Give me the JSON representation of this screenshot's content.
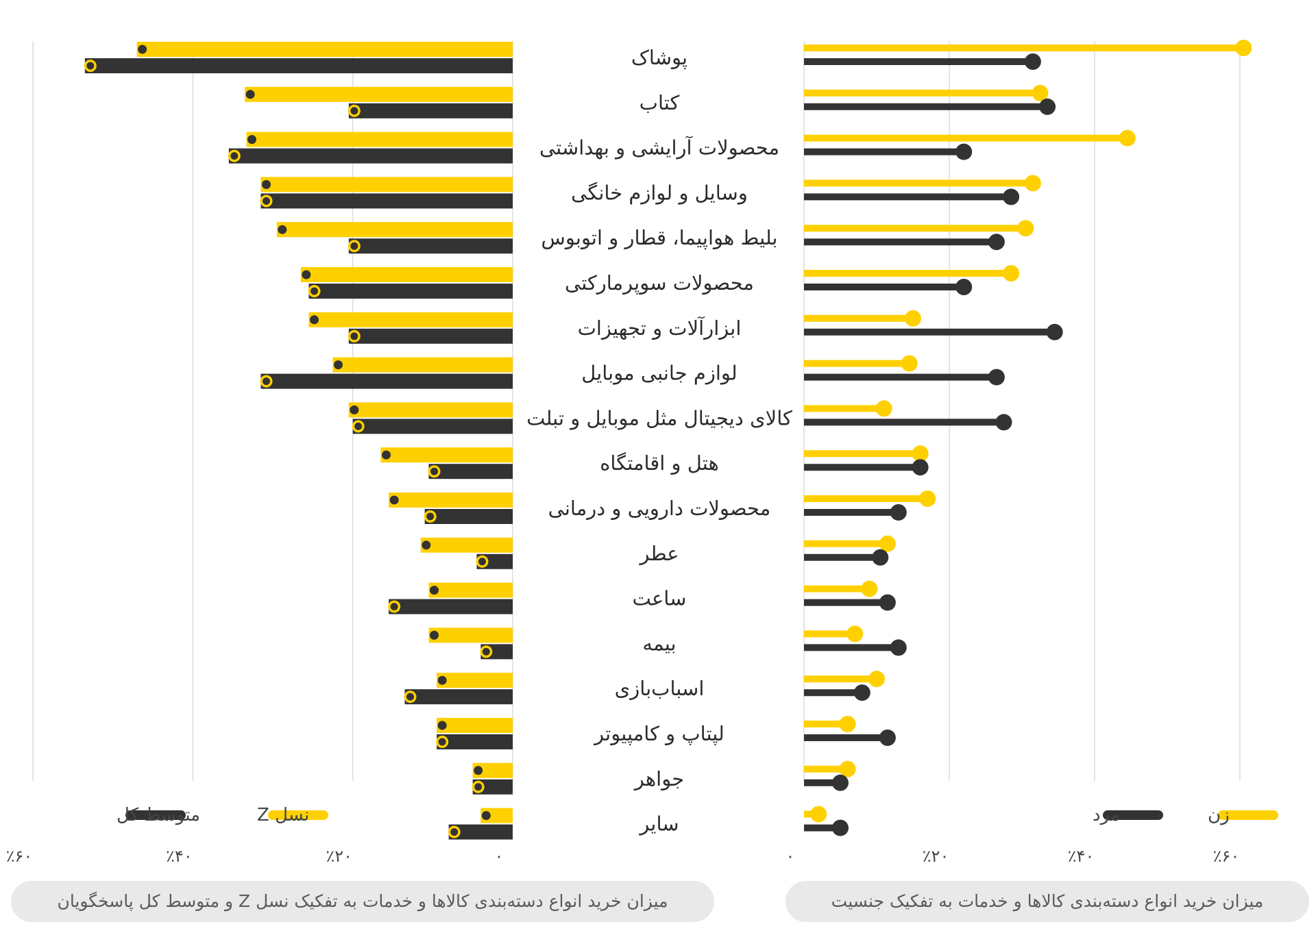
{
  "chart_data": [
    {
      "type": "bar",
      "orientation": "horizontal",
      "direction": "right-to-left",
      "title": "میزان خرید انواع دسته‌بندی کالاها و خدمات به تفکیک نسل Z و متوسط کل پاسخگویان",
      "categories": [
        "پوشاک",
        "کتاب",
        "محصولات آرایشی و بهداشتی",
        "وسایل و لوازم خانگی",
        "بلیط هواپیما، قطار و اتوبوس",
        "محصولات سوپرمارکتی",
        "ابزارآلات و تجهیزات",
        "لوازم جانبی موبایل",
        "کالای دیجیتال مثل موبایل و تبلت",
        "هتل و اقامتگاه",
        "محصولات دارویی و درمانی",
        "عطر",
        "ساعت",
        "بیمه",
        "اسباب‌بازی",
        "لپتاپ و کامپیوتر",
        "جواهر",
        "سایر"
      ],
      "series": [
        {
          "name": "نسل Z",
          "color": "#FFD000",
          "values": [
            47,
            33.5,
            33.3,
            31.5,
            29.5,
            26.5,
            25.5,
            22.5,
            20.5,
            16.5,
            15.5,
            11.5,
            10.5,
            10.5,
            9.5,
            9.5,
            5,
            4
          ]
        },
        {
          "name": "متوسط کل",
          "color": "#333333",
          "values": [
            53.5,
            20.5,
            35.5,
            31.5,
            20.5,
            25.5,
            20.5,
            31.5,
            20,
            10.5,
            11,
            4.5,
            15.5,
            4,
            13.5,
            9.5,
            5,
            8
          ]
        }
      ],
      "xlim": [
        0,
        60
      ],
      "x_ticks": [
        "۰",
        "٪۲۰",
        "٪۴۰",
        "٪۶۰"
      ],
      "grid": true,
      "legend": "bottom-left",
      "legend_entries": [
        "نسل Z",
        "متوسط کل"
      ]
    },
    {
      "type": "lollipop",
      "orientation": "horizontal",
      "title": "میزان خرید انواع دسته‌بندی کالاها و خدمات به تفکیک جنسیت",
      "categories": [
        "پوشاک",
        "کتاب",
        "محصولات آرایشی و بهداشتی",
        "وسایل و لوازم خانگی",
        "بلیط هواپیما، قطار و اتوبوس",
        "محصولات سوپرمارکتی",
        "ابزارآلات و تجهیزات",
        "لوازم جانبی موبایل",
        "کالای دیجیتال مثل موبایل و تبلت",
        "هتل و اقامتگاه",
        "محصولات دارویی و درمانی",
        "عطر",
        "ساعت",
        "بیمه",
        "اسباب‌بازی",
        "لپتاپ و کامپیوتر",
        "جواهر",
        "سایر"
      ],
      "series": [
        {
          "name": "زن",
          "color": "#FFD000",
          "values": [
            60.5,
            32.5,
            44.5,
            31.5,
            30.5,
            28.5,
            15,
            14.5,
            11,
            16,
            17,
            11.5,
            9,
            7,
            10,
            6,
            6,
            2
          ]
        },
        {
          "name": "مرد",
          "color": "#333333",
          "values": [
            31.5,
            33.5,
            22,
            28.5,
            26.5,
            22,
            34.5,
            26.5,
            27.5,
            16,
            13,
            10.5,
            11.5,
            13,
            8,
            11.5,
            5,
            5
          ]
        }
      ],
      "xlim": [
        0,
        60
      ],
      "x_ticks": [
        "۰",
        "٪۲۰",
        "٪۴۰",
        "٪۶۰"
      ],
      "grid": true,
      "legend": "bottom-right",
      "legend_entries": [
        "زن",
        "مرد"
      ]
    }
  ]
}
